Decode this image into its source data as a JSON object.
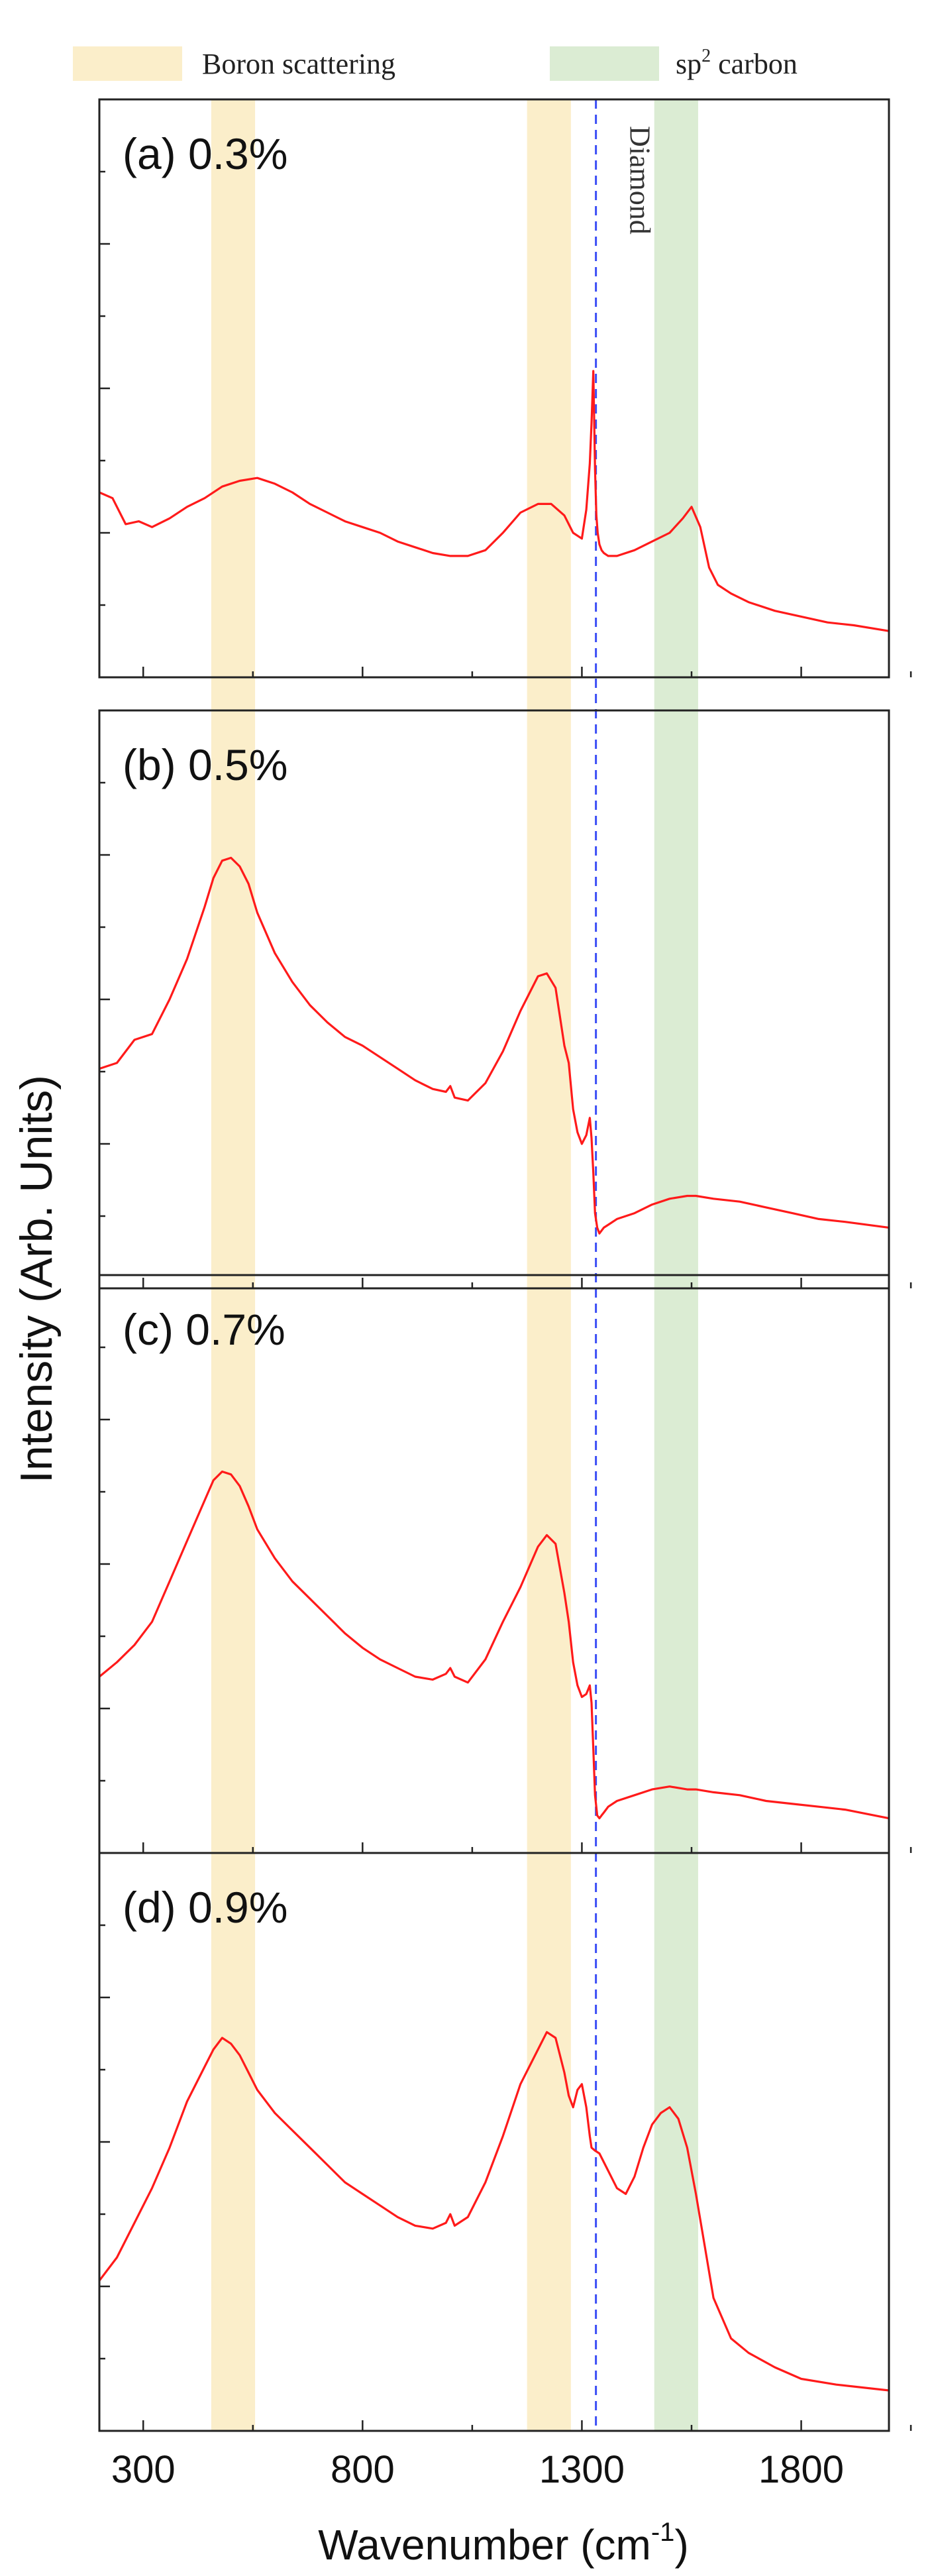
{
  "chart_data": {
    "type": "line",
    "xlabel_main": "Wavenumber (cm",
    "xlabel_sup": "-1",
    "xlabel_end": ")",
    "ylabel": "Intensity (Arb. Units)",
    "xlim": [
      200,
      2000
    ],
    "xticks": [
      300,
      800,
      1300,
      1800
    ],
    "grid": false,
    "legend": {
      "placement": "top",
      "entries": [
        {
          "name": "Boron scattering",
          "color": "#fbeeca"
        },
        {
          "name_main": "sp",
          "name_sup": "2",
          "name_end": " carbon",
          "color": "#dbecd3"
        }
      ]
    },
    "boron_bands": [
      [
        455,
        555
      ],
      [
        1175,
        1275
      ]
    ],
    "carbon_band": [
      1465,
      1565
    ],
    "diamond_line": {
      "x": 1332,
      "label": "Diamond",
      "color": "#3a4df5"
    },
    "line_color": "#ff1a1a",
    "panels": [
      {
        "label": "(a) 0.3%",
        "ylim": [
          0,
          10
        ],
        "x": [
          200,
          230,
          260,
          290,
          320,
          360,
          400,
          440,
          480,
          520,
          560,
          600,
          640,
          680,
          720,
          760,
          800,
          840,
          880,
          920,
          960,
          1000,
          1040,
          1080,
          1120,
          1160,
          1200,
          1230,
          1260,
          1280,
          1300,
          1310,
          1318,
          1322,
          1326,
          1330,
          1333,
          1336,
          1340,
          1345,
          1350,
          1360,
          1380,
          1420,
          1460,
          1500,
          1530,
          1550,
          1570,
          1590,
          1610,
          1640,
          1680,
          1740,
          1800,
          1860,
          1920,
          2000
        ],
        "y": [
          3.2,
          3.1,
          2.65,
          2.7,
          2.6,
          2.75,
          2.95,
          3.1,
          3.3,
          3.4,
          3.45,
          3.35,
          3.2,
          3.0,
          2.85,
          2.7,
          2.6,
          2.5,
          2.35,
          2.25,
          2.15,
          2.1,
          2.1,
          2.2,
          2.5,
          2.85,
          3.0,
          3.0,
          2.8,
          2.5,
          2.4,
          2.9,
          3.7,
          4.4,
          5.3,
          3.6,
          2.8,
          2.5,
          2.3,
          2.2,
          2.15,
          2.1,
          2.1,
          2.2,
          2.35,
          2.5,
          2.75,
          2.95,
          2.6,
          1.9,
          1.6,
          1.45,
          1.3,
          1.15,
          1.05,
          0.95,
          0.9,
          0.8
        ]
      },
      {
        "label": "(b) 0.5%",
        "ylim": [
          0,
          10
        ],
        "x": [
          200,
          240,
          280,
          320,
          360,
          400,
          440,
          460,
          480,
          500,
          520,
          540,
          560,
          600,
          640,
          680,
          720,
          760,
          800,
          840,
          880,
          920,
          960,
          990,
          1000,
          1010,
          1040,
          1080,
          1120,
          1160,
          1200,
          1220,
          1240,
          1260,
          1270,
          1280,
          1290,
          1300,
          1310,
          1318,
          1322,
          1326,
          1330,
          1335,
          1340,
          1345,
          1350,
          1360,
          1380,
          1420,
          1460,
          1500,
          1540,
          1560,
          1600,
          1660,
          1720,
          1780,
          1840,
          1900,
          2000
        ],
        "y": [
          3.8,
          3.9,
          4.3,
          4.4,
          5.0,
          5.7,
          6.6,
          7.1,
          7.4,
          7.45,
          7.3,
          7.0,
          6.5,
          5.8,
          5.3,
          4.9,
          4.6,
          4.35,
          4.2,
          4.0,
          3.8,
          3.6,
          3.45,
          3.4,
          3.5,
          3.3,
          3.25,
          3.55,
          4.1,
          4.8,
          5.4,
          5.45,
          5.2,
          4.2,
          3.9,
          3.1,
          2.7,
          2.5,
          2.65,
          2.95,
          2.6,
          2.0,
          1.3,
          1.05,
          0.95,
          1.0,
          1.05,
          1.1,
          1.2,
          1.3,
          1.45,
          1.55,
          1.6,
          1.6,
          1.55,
          1.5,
          1.4,
          1.3,
          1.2,
          1.15,
          1.05
        ]
      },
      {
        "label": "(c) 0.7%",
        "ylim": [
          0,
          10
        ],
        "x": [
          200,
          240,
          280,
          320,
          360,
          400,
          440,
          460,
          480,
          500,
          520,
          540,
          560,
          600,
          640,
          680,
          720,
          760,
          800,
          840,
          880,
          920,
          960,
          990,
          1000,
          1010,
          1040,
          1080,
          1120,
          1160,
          1200,
          1220,
          1240,
          1260,
          1270,
          1280,
          1290,
          1300,
          1310,
          1318,
          1322,
          1326,
          1330,
          1335,
          1340,
          1345,
          1350,
          1360,
          1380,
          1420,
          1460,
          1500,
          1540,
          1560,
          1600,
          1660,
          1720,
          1780,
          1840,
          1900,
          2000
        ],
        "y": [
          3.05,
          3.3,
          3.6,
          4.0,
          4.7,
          5.4,
          6.1,
          6.45,
          6.6,
          6.55,
          6.35,
          6.0,
          5.6,
          5.1,
          4.7,
          4.4,
          4.1,
          3.8,
          3.55,
          3.35,
          3.2,
          3.05,
          3.0,
          3.1,
          3.2,
          3.05,
          2.95,
          3.35,
          4.0,
          4.6,
          5.3,
          5.5,
          5.35,
          4.5,
          4.0,
          3.3,
          2.9,
          2.7,
          2.75,
          2.9,
          2.6,
          1.8,
          1.0,
          0.65,
          0.6,
          0.65,
          0.7,
          0.8,
          0.9,
          1.0,
          1.1,
          1.15,
          1.1,
          1.1,
          1.05,
          1.0,
          0.9,
          0.85,
          0.8,
          0.75,
          0.6
        ]
      },
      {
        "label": "(d) 0.9%",
        "ylim": [
          0,
          10
        ],
        "x": [
          200,
          240,
          280,
          320,
          360,
          400,
          440,
          460,
          480,
          500,
          520,
          540,
          560,
          600,
          640,
          680,
          720,
          760,
          800,
          840,
          880,
          920,
          960,
          990,
          1000,
          1010,
          1040,
          1080,
          1120,
          1160,
          1200,
          1220,
          1240,
          1260,
          1270,
          1280,
          1290,
          1300,
          1310,
          1318,
          1322,
          1330,
          1340,
          1360,
          1380,
          1400,
          1420,
          1440,
          1460,
          1480,
          1500,
          1520,
          1540,
          1560,
          1580,
          1600,
          1640,
          1680,
          1740,
          1800,
          1880,
          2000
        ],
        "y": [
          2.6,
          3.0,
          3.6,
          4.2,
          4.9,
          5.7,
          6.3,
          6.6,
          6.8,
          6.7,
          6.5,
          6.2,
          5.9,
          5.5,
          5.2,
          4.9,
          4.6,
          4.3,
          4.1,
          3.9,
          3.7,
          3.55,
          3.5,
          3.6,
          3.75,
          3.55,
          3.7,
          4.3,
          5.1,
          6.0,
          6.6,
          6.9,
          6.8,
          6.2,
          5.8,
          5.6,
          5.9,
          6.0,
          5.6,
          5.1,
          4.9,
          4.85,
          4.8,
          4.5,
          4.2,
          4.1,
          4.4,
          4.9,
          5.3,
          5.5,
          5.6,
          5.4,
          4.9,
          4.1,
          3.2,
          2.3,
          1.6,
          1.35,
          1.1,
          0.9,
          0.8,
          0.7
        ]
      }
    ]
  }
}
